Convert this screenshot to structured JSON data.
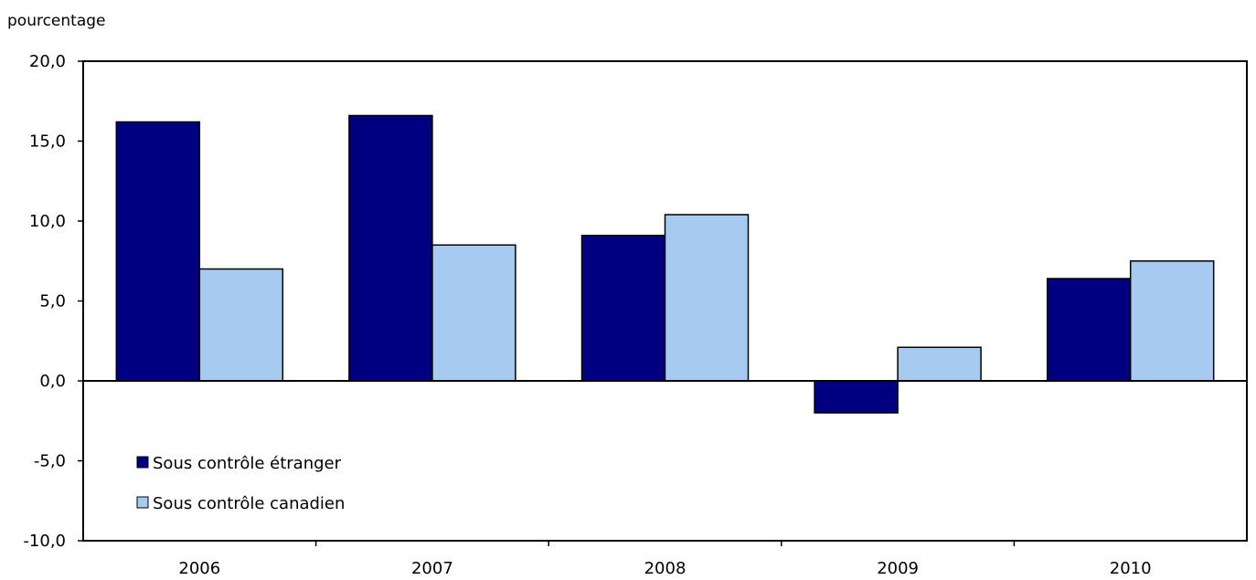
{
  "colors": {
    "foreign": "#000080",
    "canadian": "#A6CAF0",
    "axis": "#000000",
    "background": "#FFFFFF"
  },
  "chart_data": {
    "type": "bar",
    "title": "",
    "xlabel": "",
    "ylabel": "pourcentage",
    "categories": [
      "2006",
      "2007",
      "2008",
      "2009",
      "2010"
    ],
    "series": [
      {
        "name": "Sous contrôle étranger",
        "values": [
          16.2,
          16.6,
          9.1,
          -2.0,
          6.4
        ]
      },
      {
        "name": "Sous contrôle canadien",
        "values": [
          7.0,
          8.5,
          10.4,
          2.1,
          7.5
        ]
      }
    ],
    "ylim": [
      -10,
      20
    ],
    "yticks": [
      -10,
      -5,
      0,
      5,
      10,
      15,
      20
    ],
    "ytick_labels": [
      "-10,0",
      "-5,0",
      "0,0",
      "5,0",
      "10,0",
      "15,0",
      "20,0"
    ],
    "grid": false,
    "legend_position": "lower-left"
  }
}
